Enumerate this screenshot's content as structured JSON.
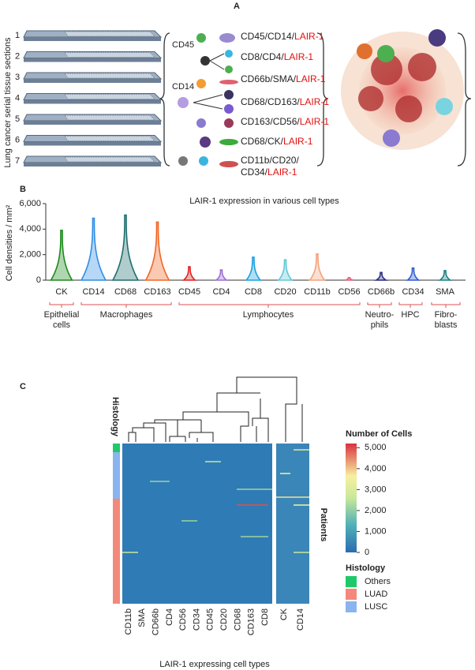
{
  "panel_a": {
    "label": "A",
    "y_label": "Lung cancer serial tissue sections",
    "slides": [
      1,
      2,
      3,
      4,
      5,
      6,
      7
    ],
    "marker_labels": [
      "CD45",
      "CD14"
    ],
    "panels": [
      {
        "text": "CD45/CD14/",
        "highlight": "LAIR-1"
      },
      {
        "text": "CD8/CD4/",
        "highlight": "LAIR-1"
      },
      {
        "text": "CD66b/SMA/",
        "highlight": "LAIR-1"
      },
      {
        "text": "CD68/CD163/",
        "highlight": "LAIR-1"
      },
      {
        "text": "CD163/CD56/",
        "highlight": "LAIR-1"
      },
      {
        "text": "CD68/CK/",
        "highlight": "LAIR-1"
      },
      {
        "text": "CD11b/CD20/"
      },
      {
        "text": "CD34/",
        "highlight": "LAIR-1"
      }
    ]
  },
  "panel_b_label": "B",
  "panel_c_label": "C",
  "chart_data": [
    {
      "type": "violin",
      "title": "LAIR-1 expression in various cell types",
      "y_label": "Cell densities / mm²",
      "categories": [
        "CK",
        "CD14",
        "CD68",
        "CD163",
        "CD45",
        "CD4",
        "CD8",
        "CD20",
        "CD11b",
        "CD56",
        "CD66b",
        "CD34",
        "SMA"
      ],
      "values": [
        3900,
        4850,
        5100,
        4550,
        1050,
        800,
        1800,
        1600,
        2050,
        200,
        600,
        950,
        750
      ],
      "colors": [
        "#1a8a1a",
        "#2f8de4",
        "#1e6e6e",
        "#f26522",
        "#e02020",
        "#9a6fd0",
        "#1aa0e0",
        "#5ec8d8",
        "#f4a27a",
        "#e0607a",
        "#2a2a80",
        "#2d5bd0",
        "#1a8080"
      ],
      "ylim": [
        0,
        6000
      ],
      "yticks": [
        0,
        {
          "value": 2000,
          "label": "2,000"
        },
        {
          "value": 4000,
          "label": "4,000"
        },
        {
          "value": 6000,
          "label": "6,000"
        }
      ],
      "groups": [
        "Epithelial cells",
        "Macrophages",
        "Lymphocytes",
        "Neutro-phils",
        "HPC",
        "Fibro-blasts"
      ]
    },
    {
      "type": "heatmap",
      "histology_title": "Histology",
      "x_label": "LAIR-1 expressing cell types",
      "y_label": "Patients",
      "columns": [
        "CD11b",
        "SMA",
        "CD66b",
        "CD4",
        "CD56",
        "CD34",
        "CD45",
        "CD20",
        "CD68",
        "CD163",
        "CD8",
        "CK",
        "CD14"
      ],
      "colorbar": {
        "title": "Number of Cells",
        "zlim": [
          0,
          5200
        ],
        "ticks": [
          0,
          {
            "value": 1000,
            "label": "1,000"
          },
          {
            "value": 2000,
            "label": "2,000"
          },
          {
            "value": 3000,
            "label": "3,000"
          },
          {
            "value": 4000,
            "label": "4,000"
          },
          {
            "value": 5000,
            "label": "5,000"
          }
        ]
      },
      "legend": {
        "title": "Histology",
        "items": [
          {
            "name": "Others",
            "color": "#1fc96b"
          },
          {
            "name": "LUAD",
            "color": "#f3897a"
          },
          {
            "name": "LUSC",
            "color": "#8ab4ee"
          }
        ]
      }
    }
  ]
}
